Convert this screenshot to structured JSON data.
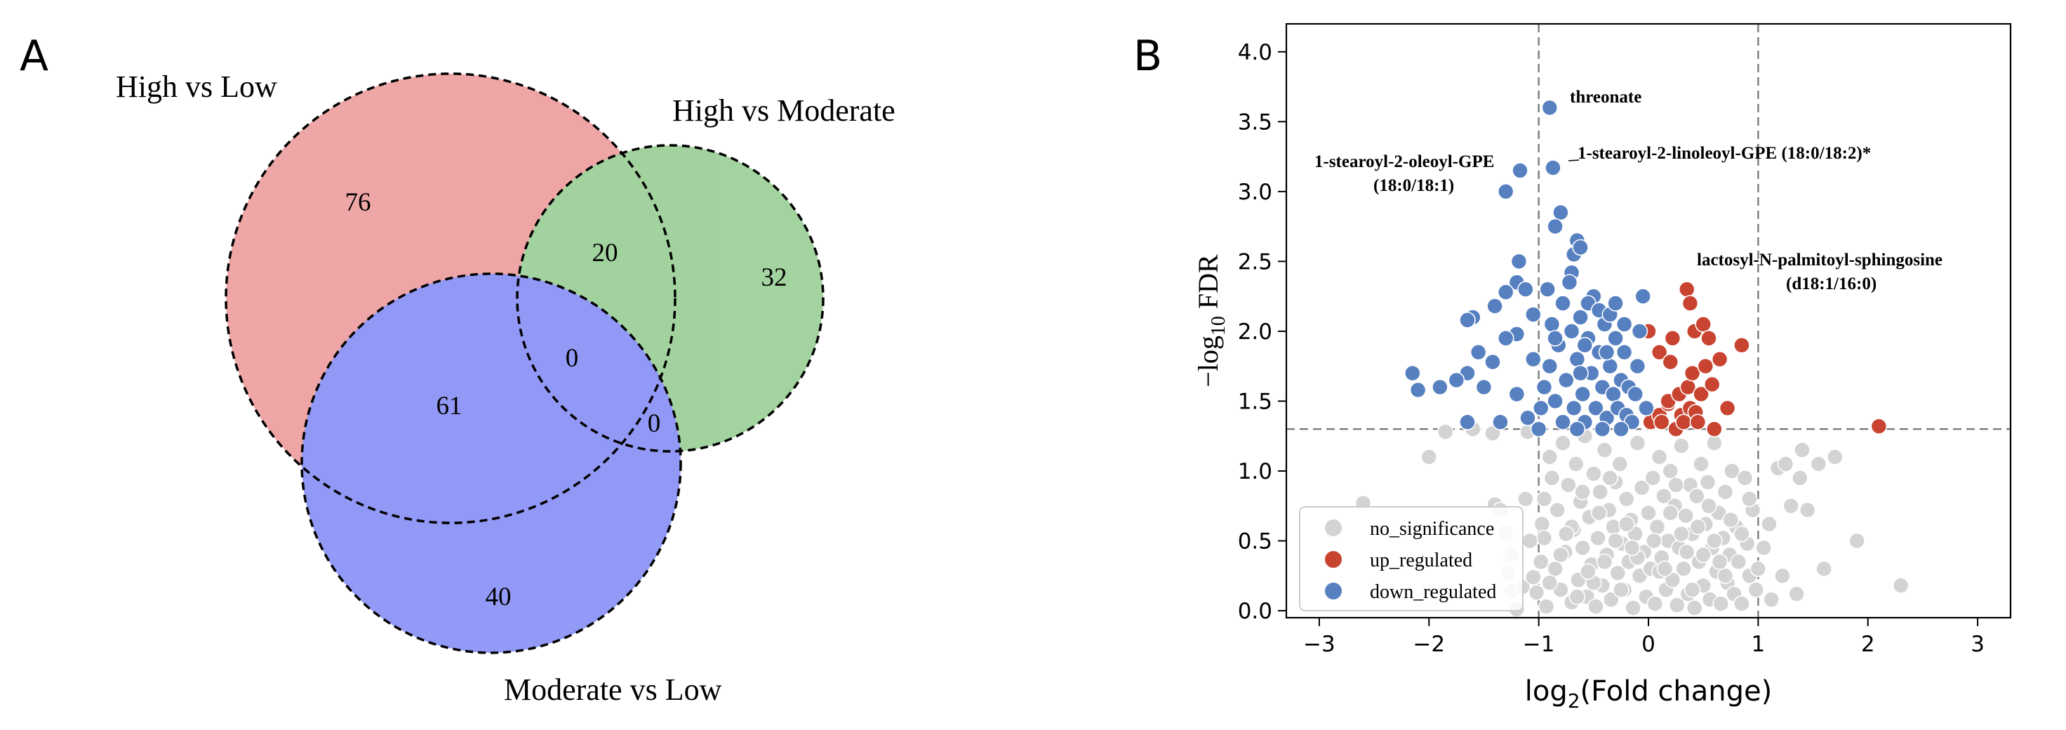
{
  "panel_a": {
    "letter": "A",
    "venn": {
      "sets": [
        {
          "name": "High vs Low",
          "color": "#e56b6b"
        },
        {
          "name": "High vs Moderate",
          "color": "#66b55f"
        },
        {
          "name": "Moderate vs Low",
          "color": "#4a55f0"
        }
      ],
      "regions": {
        "hl_only": "76",
        "hm_only": "32",
        "ml_only": "40",
        "hl_hm": "20",
        "hl_ml": "61",
        "hm_ml": "0",
        "all": "0"
      }
    }
  },
  "panel_b": {
    "letter": "B",
    "colors": {
      "no_significance": "#d3d3d3",
      "up_regulated": "#c84330",
      "down_regulated": "#5680c0",
      "threshold": "#808080"
    },
    "legend": [
      "no_significance",
      "up_regulated",
      "down_regulated"
    ],
    "annotations": [
      {
        "text": "threonate"
      },
      {
        "text": "1-stearoyl-2-oleoyl-GPE"
      },
      {
        "text": "(18:0/18:1)"
      },
      {
        "text": "1-stearoyl-2-linoleoyl-GPE (18:0/18:2)*"
      },
      {
        "text": "lactosyl-N-palmitoyl-sphingosine"
      },
      {
        "text": "(d18:1/16:0)"
      }
    ]
  },
  "chart_data": {
    "type": "scatter",
    "xlabel": "log2(Fold change)",
    "ylabel": "−log10 FDR",
    "xlim": [
      -3.3,
      3.3
    ],
    "ylim": [
      -0.05,
      4.2
    ],
    "xticks": [
      -3,
      -2,
      -1,
      0,
      1,
      2,
      3
    ],
    "yticks": [
      0.0,
      0.5,
      1.0,
      1.5,
      2.0,
      2.5,
      3.0,
      3.5,
      4.0
    ],
    "thresholds": {
      "x": [
        -1,
        1
      ],
      "y": 1.3
    },
    "legend_position": "bottom-left",
    "series": [
      {
        "name": "no_significance",
        "points": [
          [
            -2.6,
            0.77
          ],
          [
            -2.0,
            1.1
          ],
          [
            -1.85,
            1.28
          ],
          [
            -1.6,
            1.3
          ],
          [
            -1.42,
            1.27
          ],
          [
            -1.4,
            0.76
          ],
          [
            -1.35,
            0.72
          ],
          [
            -1.3,
            0.56
          ],
          [
            -1.28,
            0.27
          ],
          [
            -1.25,
            0.14
          ],
          [
            -1.2,
            0.01
          ],
          [
            -1.15,
            0.17
          ],
          [
            -1.12,
            0.8
          ],
          [
            -1.1,
            1.28
          ],
          [
            -1.05,
            0.24
          ],
          [
            -1.02,
            0.13
          ],
          [
            -0.98,
            0.35
          ],
          [
            -0.97,
            0.62
          ],
          [
            -0.95,
            0.52
          ],
          [
            -0.93,
            0.03
          ],
          [
            -0.9,
            1.1
          ],
          [
            -0.88,
            0.95
          ],
          [
            -0.85,
            0.3
          ],
          [
            -0.83,
            0.72
          ],
          [
            -0.8,
            0.15
          ],
          [
            -0.78,
            1.2
          ],
          [
            -0.76,
            0.42
          ],
          [
            -0.73,
            0.9
          ],
          [
            -0.7,
            0.06
          ],
          [
            -0.68,
            0.58
          ],
          [
            -0.66,
            1.05
          ],
          [
            -0.64,
            0.22
          ],
          [
            -0.62,
            0.78
          ],
          [
            -0.6,
            0.45
          ],
          [
            -0.58,
            1.25
          ],
          [
            -0.56,
            0.1
          ],
          [
            -0.54,
            0.67
          ],
          [
            -0.52,
            0.33
          ],
          [
            -0.5,
            0.98
          ],
          [
            -0.48,
            0.03
          ],
          [
            -0.46,
            0.52
          ],
          [
            -0.44,
            0.85
          ],
          [
            -0.42,
            0.18
          ],
          [
            -0.4,
            1.15
          ],
          [
            -0.38,
            0.4
          ],
          [
            -0.36,
            0.72
          ],
          [
            -0.34,
            0.08
          ],
          [
            -0.32,
            0.6
          ],
          [
            -0.3,
            0.92
          ],
          [
            -0.28,
            0.27
          ],
          [
            -0.26,
            1.05
          ],
          [
            -0.24,
            0.48
          ],
          [
            -0.22,
            0.15
          ],
          [
            -0.2,
            0.8
          ],
          [
            -0.18,
            0.35
          ],
          [
            -0.16,
            0.65
          ],
          [
            -0.14,
            0.02
          ],
          [
            -0.12,
            0.55
          ],
          [
            -0.1,
            1.2
          ],
          [
            -0.08,
            0.25
          ],
          [
            -0.06,
            0.88
          ],
          [
            -0.04,
            0.42
          ],
          [
            -0.02,
            0.1
          ],
          [
            0.0,
            0.7
          ],
          [
            0.02,
            0.3
          ],
          [
            0.04,
            0.95
          ],
          [
            0.06,
            0.05
          ],
          [
            0.08,
            0.6
          ],
          [
            0.1,
            1.1
          ],
          [
            0.12,
            0.38
          ],
          [
            0.14,
            0.82
          ],
          [
            0.16,
            0.15
          ],
          [
            0.18,
            0.5
          ],
          [
            0.2,
            1.0
          ],
          [
            0.22,
            0.22
          ],
          [
            0.24,
            0.75
          ],
          [
            0.26,
            0.04
          ],
          [
            0.28,
            0.45
          ],
          [
            0.3,
            1.18
          ],
          [
            0.32,
            0.3
          ],
          [
            0.34,
            0.68
          ],
          [
            0.36,
            0.12
          ],
          [
            0.38,
            0.9
          ],
          [
            0.4,
            0.55
          ],
          [
            0.42,
            0.02
          ],
          [
            0.44,
            0.82
          ],
          [
            0.46,
            0.35
          ],
          [
            0.48,
            1.05
          ],
          [
            0.5,
            0.18
          ],
          [
            0.52,
            0.62
          ],
          [
            0.54,
            0.92
          ],
          [
            0.56,
            0.08
          ],
          [
            0.58,
            0.45
          ],
          [
            0.6,
            1.2
          ],
          [
            0.62,
            0.28
          ],
          [
            0.64,
            0.7
          ],
          [
            0.66,
            0.05
          ],
          [
            0.68,
            0.52
          ],
          [
            0.7,
            0.85
          ],
          [
            0.72,
            0.2
          ],
          [
            0.74,
            0.4
          ],
          [
            0.76,
            1.0
          ],
          [
            0.78,
            0.12
          ],
          [
            0.8,
            0.6
          ],
          [
            0.82,
            0.35
          ],
          [
            0.85,
            0.05
          ],
          [
            0.88,
            0.95
          ],
          [
            0.9,
            0.48
          ],
          [
            0.92,
            0.25
          ],
          [
            0.95,
            0.72
          ],
          [
            0.98,
            0.15
          ],
          [
            1.0,
            0.3
          ],
          [
            1.05,
            0.45
          ],
          [
            1.12,
            0.08
          ],
          [
            1.18,
            1.02
          ],
          [
            1.25,
            1.05
          ],
          [
            1.3,
            0.75
          ],
          [
            1.35,
            0.12
          ],
          [
            1.38,
            0.95
          ],
          [
            1.4,
            1.15
          ],
          [
            1.45,
            0.72
          ],
          [
            1.55,
            1.05
          ],
          [
            1.6,
            0.3
          ],
          [
            1.7,
            1.1
          ],
          [
            1.9,
            0.5
          ],
          [
            2.3,
            0.18
          ],
          [
            -0.7,
            0.6
          ],
          [
            -0.5,
            0.2
          ],
          [
            -0.3,
            0.5
          ],
          [
            -0.1,
            0.38
          ],
          [
            0.1,
            0.28
          ],
          [
            0.3,
            0.55
          ],
          [
            0.5,
            0.4
          ],
          [
            0.7,
            0.25
          ],
          [
            -0.6,
            0.85
          ],
          [
            -0.4,
            0.35
          ],
          [
            -0.2,
            0.62
          ],
          [
            0.2,
            0.7
          ],
          [
            0.4,
            0.15
          ],
          [
            0.6,
            0.5
          ],
          [
            -0.8,
            0.4
          ],
          [
            -0.65,
            0.1
          ],
          [
            -0.45,
            0.7
          ],
          [
            -0.25,
            0.15
          ],
          [
            0.05,
            0.5
          ],
          [
            0.25,
            0.9
          ],
          [
            0.45,
            0.6
          ],
          [
            0.65,
            0.35
          ],
          [
            0.85,
            0.55
          ],
          [
            -0.95,
            0.8
          ],
          [
            -0.75,
            0.55
          ],
          [
            -0.55,
            0.28
          ],
          [
            -0.35,
            0.95
          ],
          [
            -0.15,
            0.45
          ],
          [
            0.15,
            0.3
          ],
          [
            0.35,
            0.42
          ],
          [
            0.55,
            0.75
          ],
          [
            0.75,
            0.65
          ],
          [
            -1.08,
            0.5
          ],
          [
            1.1,
            0.62
          ],
          [
            -1.25,
            0.4
          ],
          [
            1.22,
            0.25
          ],
          [
            -0.9,
            0.2
          ],
          [
            0.92,
            0.8
          ]
        ]
      },
      {
        "name": "up_regulated",
        "points": [
          [
            2.1,
            1.32
          ],
          [
            0.0,
            2.0
          ],
          [
            0.02,
            1.35
          ],
          [
            0.1,
            1.4
          ],
          [
            0.1,
            1.85
          ],
          [
            0.12,
            1.35
          ],
          [
            0.18,
            1.48
          ],
          [
            0.18,
            1.5
          ],
          [
            0.2,
            1.78
          ],
          [
            0.22,
            1.95
          ],
          [
            0.25,
            1.3
          ],
          [
            0.28,
            1.55
          ],
          [
            0.3,
            1.4
          ],
          [
            0.32,
            1.35
          ],
          [
            0.35,
            2.3
          ],
          [
            0.36,
            1.6
          ],
          [
            0.38,
            1.45
          ],
          [
            0.38,
            2.2
          ],
          [
            0.4,
            1.7
          ],
          [
            0.42,
            2.0
          ],
          [
            0.43,
            1.42
          ],
          [
            0.45,
            1.35
          ],
          [
            0.48,
            1.55
          ],
          [
            0.5,
            2.05
          ],
          [
            0.52,
            1.75
          ],
          [
            0.55,
            1.95
          ],
          [
            0.58,
            1.62
          ],
          [
            0.6,
            1.3
          ],
          [
            0.65,
            1.8
          ],
          [
            0.72,
            1.45
          ],
          [
            0.85,
            1.9
          ]
        ]
      },
      {
        "name": "down_regulated",
        "points": [
          [
            -0.9,
            3.6
          ],
          [
            -1.3,
            3.0
          ],
          [
            -1.17,
            3.15
          ],
          [
            -0.87,
            3.17
          ],
          [
            -0.8,
            2.85
          ],
          [
            -0.85,
            2.75
          ],
          [
            -0.68,
            2.55
          ],
          [
            -0.65,
            2.65
          ],
          [
            -0.62,
            2.6
          ],
          [
            -0.7,
            2.42
          ],
          [
            -1.18,
            2.5
          ],
          [
            -1.2,
            2.35
          ],
          [
            -1.12,
            2.3
          ],
          [
            -1.05,
            2.12
          ],
          [
            -1.3,
            2.28
          ],
          [
            -1.4,
            2.18
          ],
          [
            -1.6,
            2.1
          ],
          [
            -1.65,
            2.08
          ],
          [
            -1.2,
            1.98
          ],
          [
            -1.3,
            1.95
          ],
          [
            -1.55,
            1.85
          ],
          [
            -1.65,
            1.7
          ],
          [
            -1.75,
            1.65
          ],
          [
            -1.42,
            1.78
          ],
          [
            -1.5,
            1.6
          ],
          [
            -1.9,
            1.6
          ],
          [
            -2.15,
            1.7
          ],
          [
            -2.1,
            1.58
          ],
          [
            -1.65,
            1.35
          ],
          [
            -1.35,
            1.35
          ],
          [
            -1.1,
            1.38
          ],
          [
            -1.2,
            1.55
          ],
          [
            -1.05,
            1.8
          ],
          [
            -0.95,
            1.6
          ],
          [
            -0.9,
            1.75
          ],
          [
            -0.85,
            1.5
          ],
          [
            -0.82,
            1.9
          ],
          [
            -0.78,
            2.2
          ],
          [
            -0.75,
            1.65
          ],
          [
            -0.7,
            2.0
          ],
          [
            -0.68,
            1.45
          ],
          [
            -0.65,
            1.8
          ],
          [
            -0.62,
            2.1
          ],
          [
            -0.6,
            1.55
          ],
          [
            -0.58,
            1.35
          ],
          [
            -0.55,
            1.95
          ],
          [
            -0.52,
            1.7
          ],
          [
            -0.5,
            2.25
          ],
          [
            -0.48,
            1.45
          ],
          [
            -0.45,
            1.85
          ],
          [
            -0.42,
            1.6
          ],
          [
            -0.4,
            2.05
          ],
          [
            -0.38,
            1.38
          ],
          [
            -0.35,
            1.75
          ],
          [
            -0.32,
            1.55
          ],
          [
            -0.3,
            1.95
          ],
          [
            -0.28,
            1.45
          ],
          [
            -0.25,
            1.65
          ],
          [
            -0.22,
            1.85
          ],
          [
            -0.2,
            1.4
          ],
          [
            -0.18,
            1.6
          ],
          [
            -0.15,
            1.35
          ],
          [
            -0.12,
            1.55
          ],
          [
            -0.1,
            1.75
          ],
          [
            -0.08,
            2.0
          ],
          [
            -0.05,
            2.25
          ],
          [
            -0.02,
            1.45
          ],
          [
            -0.92,
            2.3
          ],
          [
            -0.72,
            2.35
          ],
          [
            -0.55,
            2.2
          ],
          [
            -0.45,
            2.15
          ],
          [
            -0.35,
            2.12
          ],
          [
            -0.3,
            2.2
          ],
          [
            -0.22,
            2.05
          ],
          [
            -0.88,
            2.05
          ],
          [
            -0.98,
            1.45
          ],
          [
            -1.0,
            1.3
          ],
          [
            -0.78,
            1.35
          ],
          [
            -0.65,
            1.3
          ],
          [
            -0.85,
            1.95
          ],
          [
            -0.62,
            1.7
          ],
          [
            -0.42,
            1.3
          ],
          [
            -0.25,
            1.3
          ],
          [
            -0.58,
            1.9
          ],
          [
            -0.38,
            1.85
          ]
        ]
      }
    ]
  }
}
